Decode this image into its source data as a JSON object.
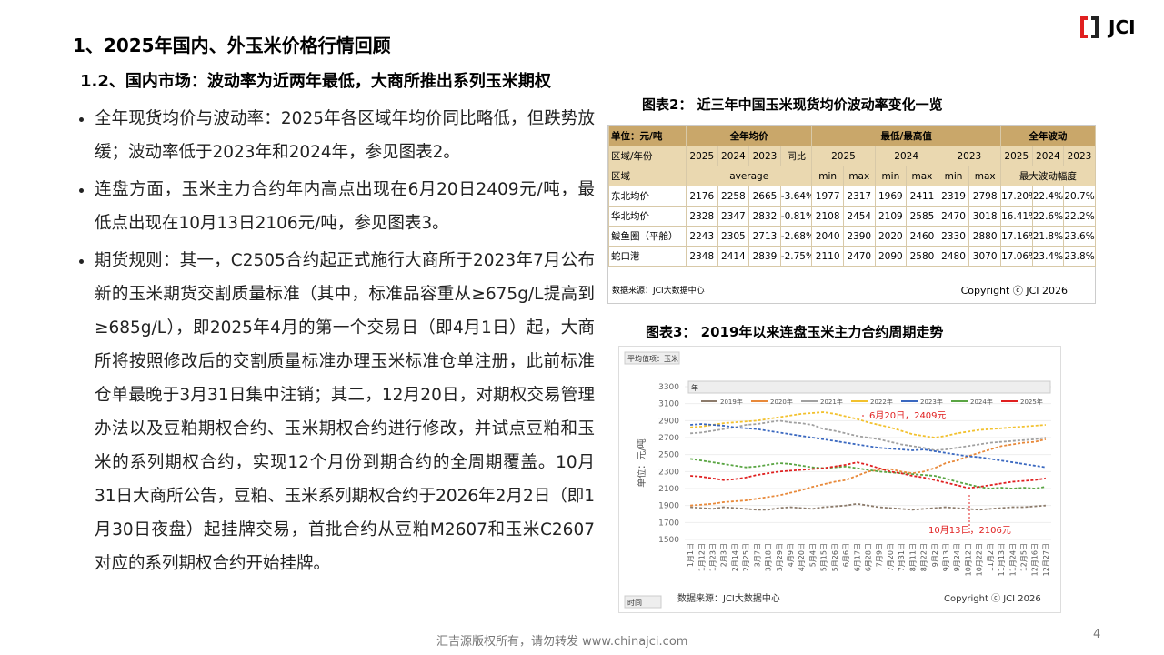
{
  "header": {
    "title": "1、2025年国内、外玉米价格行情回顾",
    "subtitle": "1.2、国内市场：波动率为近两年最低，大商所推出系列玉米期权",
    "logo": "JCI"
  },
  "bullets": [
    "全年现货均价与波动率：2025年各区域年均价同比略低，但跌势放缓；波动率低于2023年和2024年，参见图表2。",
    "连盘方面，玉米主力合约年内高点出现在6月20日2409元/吨，最低点出现在10月13日2106元/吨，参见图表3。",
    "期货规则：其一，C2505合约起正式施行大商所于2023年7月公布新的玉米期货交割质量标准（其中，标准品容重从≥675g/L提高到≥685g/L），即2025年4月的第一个交易日（即4月1日）起，大商所将按照修改后的交割质量标准办理玉米标准仓单注册，此前标准仓单最晚于3月31日集中注销；其二，12月20日，对期权交易管理办法以及豆粕期权合约、玉米期权合约进行修改，并试点豆粕和玉米的系列期权合约，实现12个月份到期合约的全周期覆盖。10月31日大商所公告，豆粕、玉米系列期权合约于2026年2月2日（即1月30日夜盘）起挂牌交易，首批合约从豆粕M2607和玉米C2607对应的系列期权合约开始挂牌。"
  ],
  "table": {
    "title": "图表2：  近三年中国玉米现货均价波动率变化一览",
    "header_rows": [
      [
        "单位：元/吨",
        "全年均价",
        "最低/最高值",
        "全年波动"
      ],
      [
        "区域/年份",
        "2025",
        "2024",
        "2023",
        "同比",
        "2025",
        "2024",
        "2023",
        "2025",
        "2024",
        "2023"
      ],
      [
        "区域",
        "average",
        "min",
        "max",
        "min",
        "max",
        "min",
        "max",
        "最大波动幅度"
      ]
    ],
    "rows": [
      [
        "东北均价",
        "2176",
        "2258",
        "2665",
        "-3.64%",
        "1977",
        "2317",
        "1969",
        "2411",
        "2319",
        "2798",
        "17.20%",
        "22.4%",
        "20.7%"
      ],
      [
        "华北均价",
        "2328",
        "2347",
        "2832",
        "-0.81%",
        "2108",
        "2454",
        "2109",
        "2585",
        "2470",
        "3018",
        "16.41%",
        "22.6%",
        "22.2%"
      ],
      [
        "鲅鱼圈（平舱）",
        "2243",
        "2305",
        "2713",
        "-2.68%",
        "2040",
        "2390",
        "2020",
        "2460",
        "2330",
        "2880",
        "17.16%",
        "21.8%",
        "23.6%"
      ],
      [
        "蛇口港",
        "2348",
        "2414",
        "2839",
        "-2.75%",
        "2110",
        "2470",
        "2090",
        "2580",
        "2480",
        "3070",
        "17.06%",
        "23.4%",
        "23.8%"
      ]
    ],
    "source": "数据来源：JCI大数据中心",
    "copyright": "Copyright ⓒ JCI 2026"
  },
  "chart_data": {
    "type": "line",
    "title": "图表3： 2019年以来连盘玉米主力合约周期走势",
    "y_label": "单位：元/吨",
    "controls": [
      "平均值项：玉米",
      "年",
      "时间"
    ],
    "categories": [
      "1月1日",
      "1月12日",
      "1月23日",
      "2月3日",
      "2月14日",
      "2月25日",
      "3月7日",
      "3月18日",
      "3月29日",
      "4月9日",
      "4月20日",
      "5月4日",
      "5月15日",
      "5月26日",
      "6月6日",
      "6月17日",
      "6月28日",
      "7月9日",
      "7月20日",
      "7月31日",
      "8月11日",
      "8月22日",
      "9月2日",
      "9月13日",
      "9月24日",
      "10月12日",
      "10月22日",
      "11月2日",
      "11月13日",
      "11月24日",
      "12月5日",
      "12月16日",
      "12月27日"
    ],
    "series": [
      {
        "name": "2019年",
        "color": "#8c7b6b",
        "values": [
          1880,
          1870,
          1860,
          1880,
          1870,
          1860,
          1850,
          1850,
          1870,
          1880,
          1870,
          1860,
          1880,
          1890,
          1900,
          1920,
          1900,
          1880,
          1870,
          1860,
          1850,
          1860,
          1870,
          1880,
          1870,
          1860,
          1850,
          1860,
          1870,
          1880,
          1880,
          1890,
          1900
        ]
      },
      {
        "name": "2020年",
        "color": "#e8893a",
        "values": [
          1900,
          1910,
          1920,
          1940,
          1950,
          1960,
          1980,
          2000,
          2020,
          2050,
          2080,
          2120,
          2150,
          2180,
          2200,
          2250,
          2300,
          2320,
          2330,
          2300,
          2280,
          2300,
          2340,
          2400,
          2430,
          2480,
          2520,
          2560,
          2600,
          2620,
          2640,
          2650,
          2680
        ]
      },
      {
        "name": "2021年",
        "color": "#a0a0a0",
        "values": [
          2750,
          2760,
          2780,
          2800,
          2820,
          2850,
          2860,
          2880,
          2900,
          2880,
          2870,
          2850,
          2800,
          2780,
          2750,
          2720,
          2700,
          2680,
          2650,
          2620,
          2600,
          2580,
          2550,
          2560,
          2580,
          2600,
          2620,
          2640,
          2650,
          2660,
          2670,
          2680,
          2700
        ]
      },
      {
        "name": "2022年",
        "color": "#f2c12e",
        "values": [
          2820,
          2830,
          2850,
          2870,
          2880,
          2890,
          2900,
          2920,
          2940,
          2960,
          2980,
          2990,
          3000,
          2980,
          2950,
          2920,
          2880,
          2850,
          2820,
          2780,
          2740,
          2720,
          2700,
          2720,
          2750,
          2770,
          2790,
          2800,
          2810,
          2820,
          2830,
          2840,
          2850
        ]
      },
      {
        "name": "2023年",
        "color": "#3a68c0",
        "values": [
          2850,
          2860,
          2850,
          2840,
          2820,
          2810,
          2800,
          2780,
          2760,
          2740,
          2720,
          2700,
          2680,
          2660,
          2640,
          2620,
          2600,
          2580,
          2570,
          2560,
          2550,
          2560,
          2540,
          2520,
          2500,
          2480,
          2470,
          2450,
          2430,
          2410,
          2390,
          2370,
          2350
        ]
      },
      {
        "name": "2024年",
        "color": "#5aa543",
        "values": [
          2450,
          2430,
          2410,
          2390,
          2370,
          2350,
          2360,
          2380,
          2400,
          2390,
          2370,
          2350,
          2340,
          2350,
          2360,
          2340,
          2320,
          2300,
          2290,
          2280,
          2270,
          2260,
          2250,
          2220,
          2180,
          2150,
          2120,
          2100,
          2110,
          2100,
          2110,
          2100,
          2120
        ]
      },
      {
        "name": "2025年",
        "color": "#e02020",
        "values": [
          2250,
          2240,
          2220,
          2200,
          2210,
          2230,
          2260,
          2280,
          2300,
          2310,
          2320,
          2330,
          2340,
          2360,
          2380,
          2409,
          2380,
          2340,
          2300,
          2280,
          2250,
          2230,
          2200,
          2170,
          2140,
          2106,
          2120,
          2140,
          2160,
          2180,
          2190,
          2200,
          2220
        ]
      }
    ],
    "ylim": [
      1500,
      3300
    ],
    "yticks": [
      1500,
      1700,
      1900,
      2100,
      2300,
      2500,
      2700,
      2900,
      3100,
      3300
    ],
    "grid": true,
    "annotations": [
      "6月20日，2409元",
      "10月13日，2106元"
    ],
    "source": "数据来源：JCI大数据中心",
    "copyright": "Copyright ⓒ JCI 2026"
  },
  "footer": {
    "text": "汇吉源版权所有，请勿转发 www.chinajci.com",
    "page": "4"
  }
}
